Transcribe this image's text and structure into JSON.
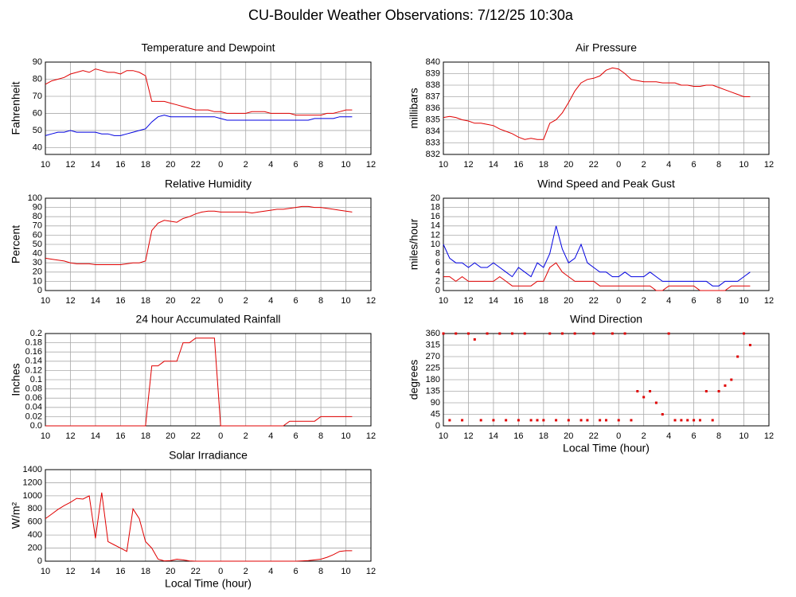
{
  "title": "CU-Boulder Weather Observations: 7/12/25 10:30a",
  "chart_data": [
    {
      "type": "line",
      "title": "Temperature and Dewpoint",
      "ylabel": "Fahrenheit",
      "x": [
        10,
        10.5,
        11,
        11.5,
        12,
        12.5,
        13,
        13.5,
        14,
        14.5,
        15,
        15.5,
        16,
        16.5,
        17,
        17.5,
        18,
        18.5,
        19,
        19.5,
        20,
        20.5,
        21,
        21.5,
        22,
        22.5,
        23,
        23.5,
        24,
        24.5,
        25,
        25.5,
        26,
        26.5,
        27,
        27.5,
        28,
        28.5,
        29,
        29.5,
        30,
        30.5,
        31,
        31.5,
        32,
        32.5,
        33,
        33.5,
        34,
        34.5
      ],
      "series": [
        {
          "color": "#e00000",
          "values": [
            77,
            79,
            80,
            81,
            83,
            84,
            85,
            84,
            86,
            85,
            84,
            84,
            83,
            85,
            85,
            84,
            82,
            67,
            67,
            67,
            66,
            65,
            64,
            63,
            62,
            62,
            62,
            61,
            61,
            60,
            60,
            60,
            60,
            61,
            61,
            61,
            60,
            60,
            60,
            60,
            59,
            59,
            59,
            59,
            59,
            60,
            60,
            61,
            62,
            62
          ]
        },
        {
          "color": "#0000e0",
          "values": [
            47,
            48,
            49,
            49,
            50,
            49,
            49,
            49,
            49,
            48,
            48,
            47,
            47,
            48,
            49,
            50,
            51,
            55,
            58,
            59,
            58,
            58,
            58,
            58,
            58,
            58,
            58,
            58,
            57,
            56,
            56,
            56,
            56,
            56,
            56,
            56,
            56,
            56,
            56,
            56,
            56,
            56,
            56,
            57,
            57,
            57,
            57,
            58,
            58,
            58
          ]
        }
      ],
      "xlim": [
        10,
        36
      ],
      "xticks": [
        10,
        12,
        14,
        16,
        18,
        20,
        22,
        {
          "value": 24,
          "label": "0"
        },
        {
          "value": 26,
          "label": "2"
        },
        {
          "value": 28,
          "label": "4"
        },
        {
          "value": 30,
          "label": "6"
        },
        {
          "value": 32,
          "label": "8"
        },
        {
          "value": 34,
          "label": "10"
        },
        {
          "value": 36,
          "label": "12"
        }
      ],
      "ylim": [
        36,
        90
      ],
      "yticks": [
        40,
        50,
        60,
        70,
        80,
        90
      ],
      "grid": true
    },
    {
      "type": "line",
      "title": "Air Pressure",
      "ylabel": "millibars",
      "x": [
        10,
        10.5,
        11,
        11.5,
        12,
        12.5,
        13,
        13.5,
        14,
        14.5,
        15,
        15.5,
        16,
        16.5,
        17,
        17.5,
        18,
        18.5,
        19,
        19.5,
        20,
        20.5,
        21,
        21.5,
        22,
        22.5,
        23,
        23.5,
        24,
        24.5,
        25,
        25.5,
        26,
        26.5,
        27,
        27.5,
        28,
        28.5,
        29,
        29.5,
        30,
        30.5,
        31,
        31.5,
        32,
        32.5,
        33,
        33.5,
        34,
        34.5
      ],
      "series": [
        {
          "color": "#e00000",
          "values": [
            835.2,
            835.3,
            835.2,
            835.0,
            834.9,
            834.7,
            834.7,
            834.6,
            834.5,
            834.2,
            834.0,
            833.8,
            833.5,
            833.3,
            833.4,
            833.3,
            833.3,
            834.7,
            835.0,
            835.6,
            836.5,
            837.5,
            838.2,
            838.5,
            838.6,
            838.8,
            839.3,
            839.5,
            839.4,
            839.0,
            838.5,
            838.4,
            838.3,
            838.3,
            838.3,
            838.2,
            838.2,
            838.2,
            838.0,
            838.0,
            837.9,
            837.9,
            838.0,
            838.0,
            837.8,
            837.6,
            837.4,
            837.2,
            837.0,
            837.0
          ]
        }
      ],
      "xlim": [
        10,
        36
      ],
      "xticks": [
        10,
        12,
        14,
        16,
        18,
        20,
        22,
        {
          "value": 24,
          "label": "0"
        },
        {
          "value": 26,
          "label": "2"
        },
        {
          "value": 28,
          "label": "4"
        },
        {
          "value": 30,
          "label": "6"
        },
        {
          "value": 32,
          "label": "8"
        },
        {
          "value": 34,
          "label": "10"
        },
        {
          "value": 36,
          "label": "12"
        }
      ],
      "ylim": [
        832,
        840
      ],
      "yticks": [
        832,
        833,
        834,
        835,
        836,
        837,
        838,
        839,
        840
      ],
      "grid": true
    },
    {
      "type": "line",
      "title": "Relative Humidity",
      "ylabel": "Percent",
      "x": [
        10,
        10.5,
        11,
        11.5,
        12,
        12.5,
        13,
        13.5,
        14,
        14.5,
        15,
        15.5,
        16,
        16.5,
        17,
        17.5,
        18,
        18.5,
        19,
        19.5,
        20,
        20.5,
        21,
        21.5,
        22,
        22.5,
        23,
        23.5,
        24,
        24.5,
        25,
        25.5,
        26,
        26.5,
        27,
        27.5,
        28,
        28.5,
        29,
        29.5,
        30,
        30.5,
        31,
        31.5,
        32,
        32.5,
        33,
        33.5,
        34,
        34.5
      ],
      "series": [
        {
          "color": "#e00000",
          "values": [
            35,
            34,
            33,
            32,
            30,
            29,
            29,
            29,
            28,
            28,
            28,
            28,
            28,
            29,
            30,
            30,
            32,
            65,
            73,
            76,
            75,
            74,
            78,
            80,
            83,
            85,
            86,
            86,
            85,
            85,
            85,
            85,
            85,
            84,
            85,
            86,
            87,
            88,
            88,
            89,
            90,
            91,
            91,
            90,
            90,
            89,
            88,
            87,
            86,
            85
          ]
        }
      ],
      "xlim": [
        10,
        36
      ],
      "xticks": [
        10,
        12,
        14,
        16,
        18,
        20,
        22,
        {
          "value": 24,
          "label": "0"
        },
        {
          "value": 26,
          "label": "2"
        },
        {
          "value": 28,
          "label": "4"
        },
        {
          "value": 30,
          "label": "6"
        },
        {
          "value": 32,
          "label": "8"
        },
        {
          "value": 34,
          "label": "10"
        },
        {
          "value": 36,
          "label": "12"
        }
      ],
      "ylim": [
        0,
        100
      ],
      "yticks": [
        0,
        10,
        20,
        30,
        40,
        50,
        60,
        70,
        80,
        90,
        100
      ],
      "grid": true
    },
    {
      "type": "line",
      "title": "Wind Speed and Peak Gust",
      "ylabel": "miles/hour",
      "x": [
        10,
        10.5,
        11,
        11.5,
        12,
        12.5,
        13,
        13.5,
        14,
        14.5,
        15,
        15.5,
        16,
        16.5,
        17,
        17.5,
        18,
        18.5,
        19,
        19.5,
        20,
        20.5,
        21,
        21.5,
        22,
        22.5,
        23,
        23.5,
        24,
        24.5,
        25,
        25.5,
        26,
        26.5,
        27,
        27.5,
        28,
        28.5,
        29,
        29.5,
        30,
        30.5,
        31,
        31.5,
        32,
        32.5,
        33,
        33.5,
        34,
        34.5
      ],
      "series": [
        {
          "color": "#0000e0",
          "values": [
            10,
            7,
            6,
            6,
            5,
            6,
            5,
            5,
            6,
            5,
            4,
            3,
            5,
            4,
            3,
            6,
            5,
            8,
            14,
            9,
            6,
            7,
            10,
            6,
            5,
            4,
            4,
            3,
            3,
            4,
            3,
            3,
            3,
            4,
            3,
            2,
            2,
            2,
            2,
            2,
            2,
            2,
            2,
            1,
            1,
            2,
            2,
            2,
            3,
            4
          ]
        },
        {
          "color": "#e00000",
          "values": [
            3,
            3,
            2,
            3,
            2,
            2,
            2,
            2,
            2,
            3,
            2,
            1,
            1,
            1,
            1,
            2,
            2,
            5,
            6,
            4,
            3,
            2,
            2,
            2,
            2,
            1,
            1,
            1,
            1,
            1,
            1,
            1,
            1,
            1,
            0,
            0,
            1,
            1,
            1,
            1,
            1,
            0,
            0,
            0,
            0,
            0,
            1,
            1,
            1,
            1
          ]
        }
      ],
      "xlim": [
        10,
        36
      ],
      "xticks": [
        10,
        12,
        14,
        16,
        18,
        20,
        22,
        {
          "value": 24,
          "label": "0"
        },
        {
          "value": 26,
          "label": "2"
        },
        {
          "value": 28,
          "label": "4"
        },
        {
          "value": 30,
          "label": "6"
        },
        {
          "value": 32,
          "label": "8"
        },
        {
          "value": 34,
          "label": "10"
        },
        {
          "value": 36,
          "label": "12"
        }
      ],
      "ylim": [
        0,
        20
      ],
      "yticks": [
        0,
        2,
        4,
        6,
        8,
        10,
        12,
        14,
        16,
        18,
        20
      ],
      "grid": true
    },
    {
      "type": "line",
      "title": "24 hour Accumulated Rainfall",
      "ylabel": "Inches",
      "x": [
        10,
        10.5,
        11,
        11.5,
        12,
        12.5,
        13,
        13.5,
        14,
        14.5,
        15,
        15.5,
        16,
        16.5,
        17,
        17.5,
        18,
        18.5,
        19,
        19.5,
        20,
        20.5,
        21,
        21.5,
        22,
        22.5,
        23,
        23.5,
        24,
        24.5,
        25,
        25.5,
        26,
        26.5,
        27,
        27.5,
        28,
        28.5,
        29,
        29.5,
        30,
        30.5,
        31,
        31.5,
        32,
        32.5,
        33,
        33.5,
        34,
        34.5
      ],
      "series": [
        {
          "color": "#e00000",
          "values": [
            0,
            0,
            0,
            0,
            0,
            0,
            0,
            0,
            0,
            0,
            0,
            0,
            0,
            0,
            0,
            0,
            0,
            0.13,
            0.13,
            0.14,
            0.14,
            0.14,
            0.18,
            0.18,
            0.19,
            0.19,
            0.19,
            0.19,
            0,
            0,
            0,
            0,
            0,
            0,
            0,
            0,
            0,
            0,
            0,
            0.01,
            0.01,
            0.01,
            0.01,
            0.01,
            0.02,
            0.02,
            0.02,
            0.02,
            0.02,
            0.02
          ]
        }
      ],
      "xlim": [
        10,
        36
      ],
      "xticks": [
        10,
        12,
        14,
        16,
        18,
        20,
        22,
        {
          "value": 24,
          "label": "0"
        },
        {
          "value": 26,
          "label": "2"
        },
        {
          "value": 28,
          "label": "4"
        },
        {
          "value": 30,
          "label": "6"
        },
        {
          "value": 32,
          "label": "8"
        },
        {
          "value": 34,
          "label": "10"
        },
        {
          "value": 36,
          "label": "12"
        }
      ],
      "ylim": [
        0,
        0.2
      ],
      "yticks": [
        {
          "value": 0,
          "label": "0.0"
        },
        0.02,
        0.04,
        0.06,
        0.08,
        0.1,
        0.12,
        0.14,
        0.16,
        0.18,
        0.2
      ],
      "grid": true
    },
    {
      "type": "scatter",
      "title": "Wind Direction",
      "ylabel": "degrees",
      "xlabel": "Local Time (hour)",
      "x": [
        10,
        10.5,
        11,
        11.5,
        12,
        12.5,
        13,
        13.5,
        14,
        14.5,
        15,
        15.5,
        16,
        16.5,
        17,
        17.5,
        18,
        18.5,
        19,
        19.5,
        20,
        20.5,
        21,
        21.5,
        22,
        22.5,
        23,
        23.5,
        24,
        24.5,
        25,
        25.5,
        26,
        26.5,
        27,
        27.5,
        28,
        28.5,
        29,
        29.5,
        30,
        30.5,
        31,
        31.5,
        32,
        32.5,
        33,
        33.5,
        34,
        34.5
      ],
      "series": [
        {
          "color": "#e00000",
          "values": [
            360,
            22,
            360,
            22,
            360,
            337,
            22,
            360,
            22,
            360,
            22,
            360,
            22,
            360,
            22,
            22,
            22,
            360,
            22,
            360,
            22,
            360,
            22,
            22,
            360,
            22,
            22,
            360,
            22,
            360,
            22,
            135,
            112,
            135,
            90,
            45,
            360,
            22,
            22,
            22,
            22,
            22,
            135,
            22,
            135,
            157,
            180,
            270,
            360,
            315
          ]
        }
      ],
      "xlim": [
        10,
        36
      ],
      "xticks": [
        10,
        12,
        14,
        16,
        18,
        20,
        22,
        {
          "value": 24,
          "label": "0"
        },
        {
          "value": 26,
          "label": "2"
        },
        {
          "value": 28,
          "label": "4"
        },
        {
          "value": 30,
          "label": "6"
        },
        {
          "value": 32,
          "label": "8"
        },
        {
          "value": 34,
          "label": "10"
        },
        {
          "value": 36,
          "label": "12"
        }
      ],
      "ylim": [
        0,
        360
      ],
      "yticks": [
        0,
        45,
        90,
        135,
        180,
        225,
        270,
        315,
        360
      ],
      "grid": true
    },
    {
      "type": "line",
      "title": "Solar Irradiance",
      "ylabel": "W/m²",
      "xlabel": "Local Time (hour)",
      "x": [
        10,
        10.5,
        11,
        11.5,
        12,
        12.5,
        13,
        13.5,
        14,
        14.5,
        15,
        15.5,
        16,
        16.5,
        17,
        17.5,
        18,
        18.5,
        19,
        19.5,
        20,
        20.5,
        21,
        21.5,
        22,
        22.5,
        23,
        23.5,
        24,
        24.5,
        25,
        25.5,
        26,
        26.5,
        27,
        27.5,
        28,
        28.5,
        29,
        29.5,
        30,
        30.5,
        31,
        31.5,
        32,
        32.5,
        33,
        33.5,
        34,
        34.5
      ],
      "series": [
        {
          "color": "#e00000",
          "values": [
            650,
            720,
            790,
            850,
            900,
            960,
            950,
            1000,
            350,
            1050,
            300,
            250,
            200,
            150,
            800,
            650,
            300,
            200,
            30,
            5,
            10,
            30,
            20,
            5,
            0,
            0,
            0,
            0,
            0,
            0,
            0,
            0,
            0,
            0,
            0,
            0,
            0,
            0,
            0,
            0,
            0,
            5,
            10,
            20,
            30,
            60,
            100,
            150,
            160,
            160
          ]
        }
      ],
      "xlim": [
        10,
        36
      ],
      "xticks": [
        10,
        12,
        14,
        16,
        18,
        20,
        22,
        {
          "value": 24,
          "label": "0"
        },
        {
          "value": 26,
          "label": "2"
        },
        {
          "value": 28,
          "label": "4"
        },
        {
          "value": 30,
          "label": "6"
        },
        {
          "value": 32,
          "label": "8"
        },
        {
          "value": 34,
          "label": "10"
        },
        {
          "value": 36,
          "label": "12"
        }
      ],
      "ylim": [
        0,
        1400
      ],
      "yticks": [
        0,
        200,
        400,
        600,
        800,
        1000,
        1200,
        1400
      ],
      "grid": true
    }
  ]
}
